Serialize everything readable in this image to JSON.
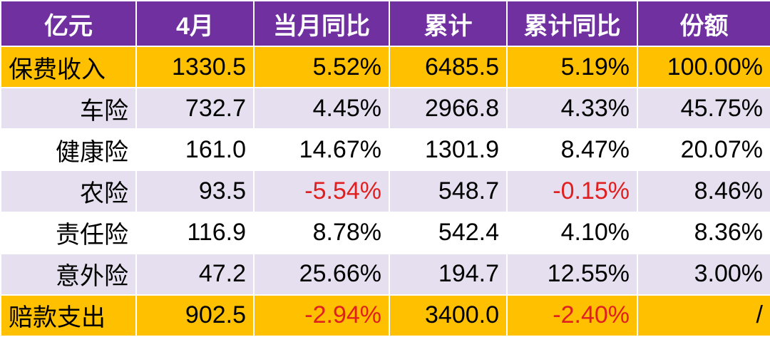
{
  "table": {
    "header": [
      "亿元",
      "4月",
      "当月同比",
      "累计",
      "累计同比",
      "份额"
    ],
    "rows": [
      [
        "保费收入",
        "1330.5",
        "5.52%",
        "6485.5",
        "5.19%",
        "100.00%"
      ],
      [
        "车险",
        "732.7",
        "4.45%",
        "2966.8",
        "4.33%",
        "45.75%"
      ],
      [
        "健康险",
        "161.0",
        "14.67%",
        "1301.9",
        "8.47%",
        "20.07%"
      ],
      [
        "农险",
        "93.5",
        "-5.54%",
        "548.7",
        "-0.15%",
        "8.46%"
      ],
      [
        "责任险",
        "116.9",
        "8.78%",
        "542.4",
        "4.10%",
        "8.36%"
      ],
      [
        "意外险",
        "47.2",
        "25.66%",
        "194.7",
        "12.55%",
        "3.00%"
      ],
      [
        "赔款支出",
        "902.5",
        "-2.94%",
        "3400.0",
        "-2.40%",
        "/"
      ]
    ],
    "highlighted_rows": [
      0,
      6
    ]
  }
}
